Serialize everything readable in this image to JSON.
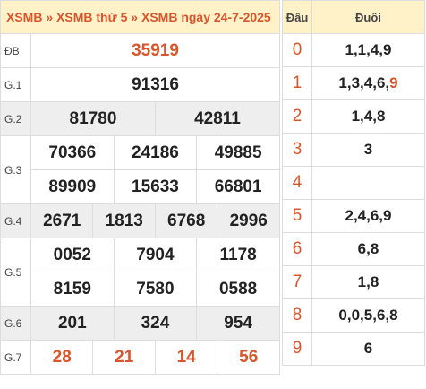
{
  "header": {
    "crumb1": "XSMB",
    "sep1": "»",
    "crumb2": "XSMB thứ 5",
    "sep2": "»",
    "crumb3": "XSMB ngày 24-7-2025"
  },
  "prizes": {
    "db": {
      "label": "ĐB",
      "values": [
        "35919"
      ]
    },
    "g1": {
      "label": "G.1",
      "values": [
        "91316"
      ]
    },
    "g2": {
      "label": "G.2",
      "values": [
        "81780",
        "42811"
      ]
    },
    "g3": {
      "label": "G.3",
      "values": [
        "70366",
        "24186",
        "49885",
        "89909",
        "15633",
        "66801"
      ]
    },
    "g4": {
      "label": "G.4",
      "values": [
        "2671",
        "1813",
        "6768",
        "2996"
      ]
    },
    "g5": {
      "label": "G.5",
      "values": [
        "0052",
        "7904",
        "1178",
        "8159",
        "7580",
        "0588"
      ]
    },
    "g6": {
      "label": "G.6",
      "values": [
        "201",
        "324",
        "954"
      ]
    },
    "g7": {
      "label": "G.7",
      "values": [
        "28",
        "21",
        "14",
        "56"
      ]
    }
  },
  "loto": {
    "head_label": "Đầu",
    "tail_label": "Đuôi",
    "rows": [
      {
        "head": "0",
        "tail": "1,1,4,9",
        "tail_highlight": ""
      },
      {
        "head": "1",
        "tail": "1,3,4,6,",
        "tail_highlight": "9"
      },
      {
        "head": "2",
        "tail": "1,4,8",
        "tail_highlight": ""
      },
      {
        "head": "3",
        "tail": "3",
        "tail_highlight": ""
      },
      {
        "head": "4",
        "tail": "",
        "tail_highlight": ""
      },
      {
        "head": "5",
        "tail": "2,4,6,9",
        "tail_highlight": ""
      },
      {
        "head": "6",
        "tail": "6,8",
        "tail_highlight": ""
      },
      {
        "head": "7",
        "tail": "1,8",
        "tail_highlight": ""
      },
      {
        "head": "8",
        "tail": "0,0,5,6,8",
        "tail_highlight": ""
      },
      {
        "head": "9",
        "tail": "6",
        "tail_highlight": ""
      }
    ]
  },
  "colors": {
    "accent": "#d9552b",
    "header_bg": "#fff1c8",
    "row_alt_bg": "#eeeeee"
  }
}
